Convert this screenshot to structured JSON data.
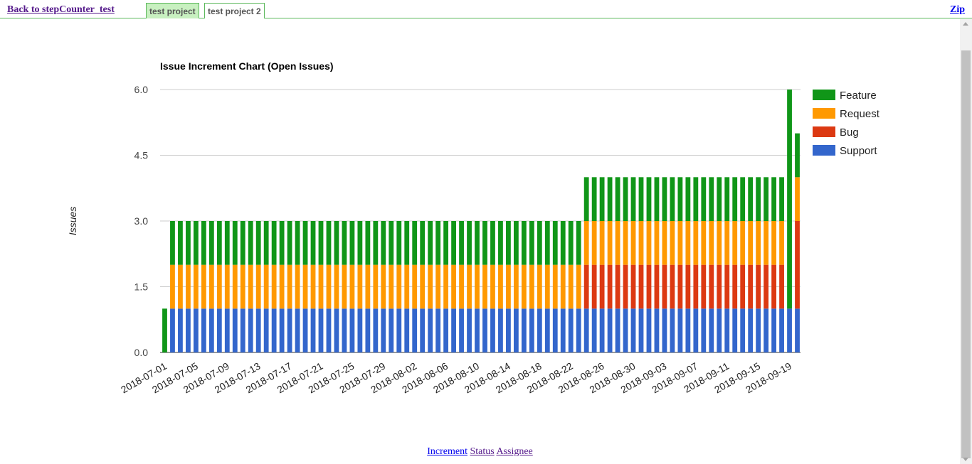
{
  "nav": {
    "back_label": "Back to stepCounter_test",
    "tabs": [
      {
        "label": "test project",
        "active": true
      },
      {
        "label": "test project 2",
        "active": false
      }
    ],
    "zip_label": "Zip"
  },
  "footer": {
    "links": [
      "Increment",
      "Status",
      "Assignee"
    ]
  },
  "chart_data": {
    "type": "bar",
    "stacked": true,
    "title": "Issue Increment Chart (Open Issues)",
    "ylabel": "Issues",
    "xlabel": "",
    "ylim": [
      0,
      6
    ],
    "yticks": [
      "0.0",
      "1.5",
      "3.0",
      "4.5",
      "6.0"
    ],
    "grid": true,
    "legend_position": "right",
    "start_date": "2018-07-01",
    "day_count": 82,
    "xtick_labels": [
      "2018-07-01",
      "2018-07-05",
      "2018-07-09",
      "2018-07-13",
      "2018-07-17",
      "2018-07-21",
      "2018-07-25",
      "2018-07-29",
      "2018-08-02",
      "2018-08-06",
      "2018-08-10",
      "2018-08-14",
      "2018-08-18",
      "2018-08-22",
      "2018-08-26",
      "2018-08-30",
      "2018-09-03",
      "2018-09-07",
      "2018-09-11",
      "2018-09-15",
      "2018-09-19"
    ],
    "series": [
      {
        "name": "Support",
        "color": "#3366cc",
        "segments": [
          {
            "from": "2018-07-01",
            "to": "2018-07-01",
            "value": 0
          },
          {
            "from": "2018-07-02",
            "to": "2018-09-20",
            "value": 1
          }
        ]
      },
      {
        "name": "Bug",
        "color": "#dc3912",
        "segments": [
          {
            "from": "2018-07-01",
            "to": "2018-08-23",
            "value": 0
          },
          {
            "from": "2018-08-24",
            "to": "2018-09-18",
            "value": 1
          },
          {
            "from": "2018-09-19",
            "to": "2018-09-19",
            "value": 0
          },
          {
            "from": "2018-09-20",
            "to": "2018-09-20",
            "value": 2
          }
        ]
      },
      {
        "name": "Request",
        "color": "#ff9900",
        "segments": [
          {
            "from": "2018-07-01",
            "to": "2018-07-01",
            "value": 0
          },
          {
            "from": "2018-07-02",
            "to": "2018-08-23",
            "value": 1
          },
          {
            "from": "2018-08-24",
            "to": "2018-09-18",
            "value": 1
          },
          {
            "from": "2018-09-19",
            "to": "2018-09-19",
            "value": 0
          },
          {
            "from": "2018-09-20",
            "to": "2018-09-20",
            "value": 1
          }
        ]
      },
      {
        "name": "Feature",
        "color": "#109618",
        "segments": [
          {
            "from": "2018-07-01",
            "to": "2018-07-01",
            "value": 1
          },
          {
            "from": "2018-07-02",
            "to": "2018-08-23",
            "value": 1
          },
          {
            "from": "2018-08-24",
            "to": "2018-09-18",
            "value": 1
          },
          {
            "from": "2018-09-19",
            "to": "2018-09-19",
            "value": 5
          },
          {
            "from": "2018-09-20",
            "to": "2018-09-20",
            "value": 1
          }
        ]
      }
    ],
    "legend": [
      "Feature",
      "Request",
      "Bug",
      "Support"
    ]
  }
}
